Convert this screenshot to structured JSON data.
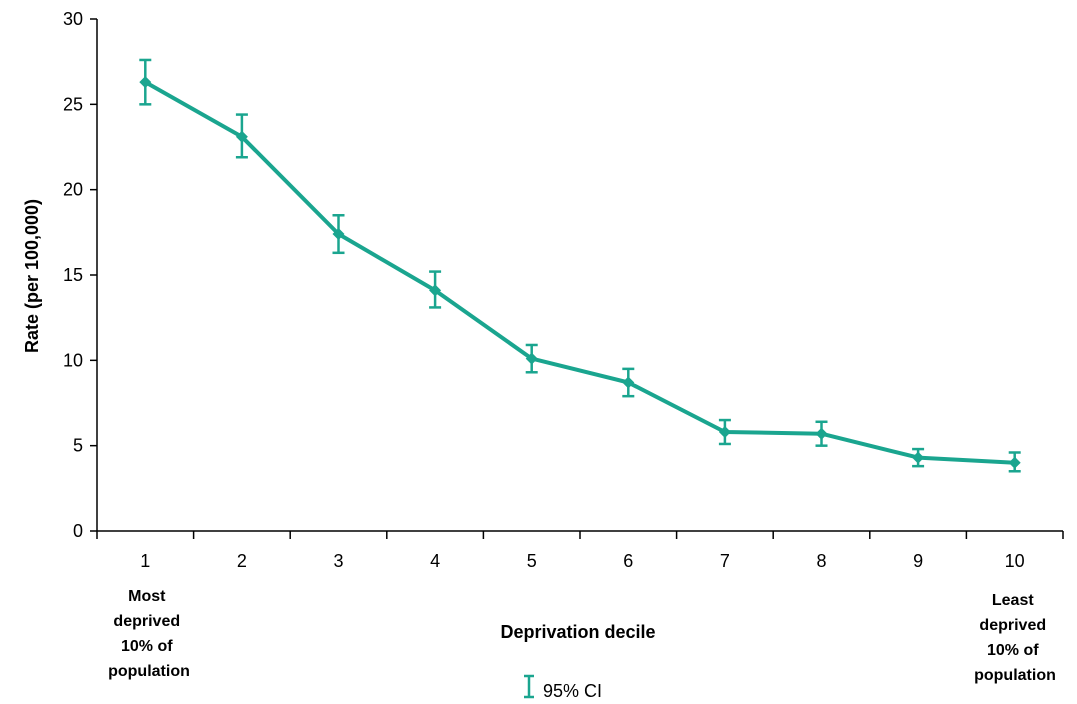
{
  "chart_data": {
    "type": "line",
    "title": "",
    "xlabel": "Deprivation decile",
    "ylabel": "Rate (per 100,000)",
    "ylim": [
      0,
      30
    ],
    "yticks": [
      0,
      5,
      10,
      15,
      20,
      25,
      30
    ],
    "categories": [
      "1",
      "2",
      "3",
      "4",
      "5",
      "6",
      "7",
      "8",
      "9",
      "10"
    ],
    "series": [
      {
        "values": [
          26.3,
          23.1,
          17.4,
          14.1,
          10.1,
          8.7,
          5.8,
          5.7,
          4.3,
          4.0
        ],
        "ci_low": [
          25.0,
          21.9,
          16.3,
          13.1,
          9.3,
          7.9,
          5.1,
          5.0,
          3.8,
          3.5
        ],
        "ci_high": [
          27.6,
          24.4,
          18.5,
          15.2,
          10.9,
          9.5,
          6.5,
          6.4,
          4.8,
          4.6
        ]
      }
    ],
    "annotations": {
      "left": [
        "Most",
        "deprived",
        "10% of",
        "population"
      ],
      "right": [
        "Least",
        "deprived",
        "10% of",
        "population"
      ]
    },
    "legend": {
      "label": "95% CI",
      "marker": "error-bar-icon",
      "position": "bottom-center"
    },
    "grid": false,
    "colors": {
      "series": "#1aa58f",
      "axis": "#000000"
    }
  }
}
